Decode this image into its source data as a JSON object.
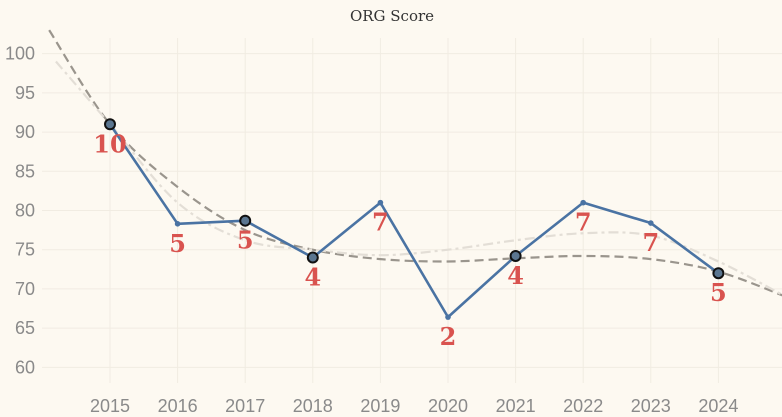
{
  "chart_data": {
    "type": "line",
    "title": "ORG Score",
    "xlabel": "",
    "ylabel": "",
    "x": [
      2015,
      2016,
      2017,
      2018,
      2019,
      2020,
      2021,
      2022,
      2023,
      2024
    ],
    "xlim": [
      2014,
      2025
    ],
    "ylim": [
      58,
      102
    ],
    "yticks": [
      60,
      65,
      70,
      75,
      80,
      85,
      90,
      95,
      100
    ],
    "grid": true,
    "series": [
      {
        "values": [
          91,
          78.3,
          78.7,
          74,
          81,
          66.4,
          74.2,
          81,
          78.4,
          72
        ],
        "labels": [
          "10",
          "5",
          "5",
          "4",
          "7",
          "2",
          "4",
          "7",
          "7",
          "5"
        ],
        "highlight": [
          true,
          false,
          true,
          true,
          false,
          false,
          true,
          false,
          false,
          true
        ],
        "color": "#4a73a3"
      }
    ],
    "trendlines": [
      {
        "style": "dashed",
        "color": "#9a958d",
        "points": [
          [
            2014.1,
            103
          ],
          [
            2015,
            91
          ],
          [
            2016,
            83
          ],
          [
            2017,
            77.5
          ],
          [
            2018,
            75
          ],
          [
            2019,
            73.8
          ],
          [
            2020,
            73.5
          ],
          [
            2021,
            73.9
          ],
          [
            2022,
            74.2
          ],
          [
            2023,
            73.8
          ],
          [
            2024,
            72.2
          ],
          [
            2025,
            69
          ]
        ]
      },
      {
        "style": "dash-dot",
        "color": "#e3ded6",
        "points": [
          [
            2014.2,
            99
          ],
          [
            2015,
            91
          ],
          [
            2016,
            81
          ],
          [
            2017,
            76.2
          ],
          [
            2018,
            75
          ],
          [
            2019,
            74.3
          ],
          [
            2020,
            75
          ],
          [
            2021,
            76.2
          ],
          [
            2022,
            77.1
          ],
          [
            2023,
            76.8
          ],
          [
            2024,
            73.5
          ],
          [
            2025,
            69
          ]
        ]
      }
    ],
    "colors": {
      "label": "#d9534f",
      "marker_fill": "#5b7690",
      "marker_edge": "#111111"
    }
  }
}
